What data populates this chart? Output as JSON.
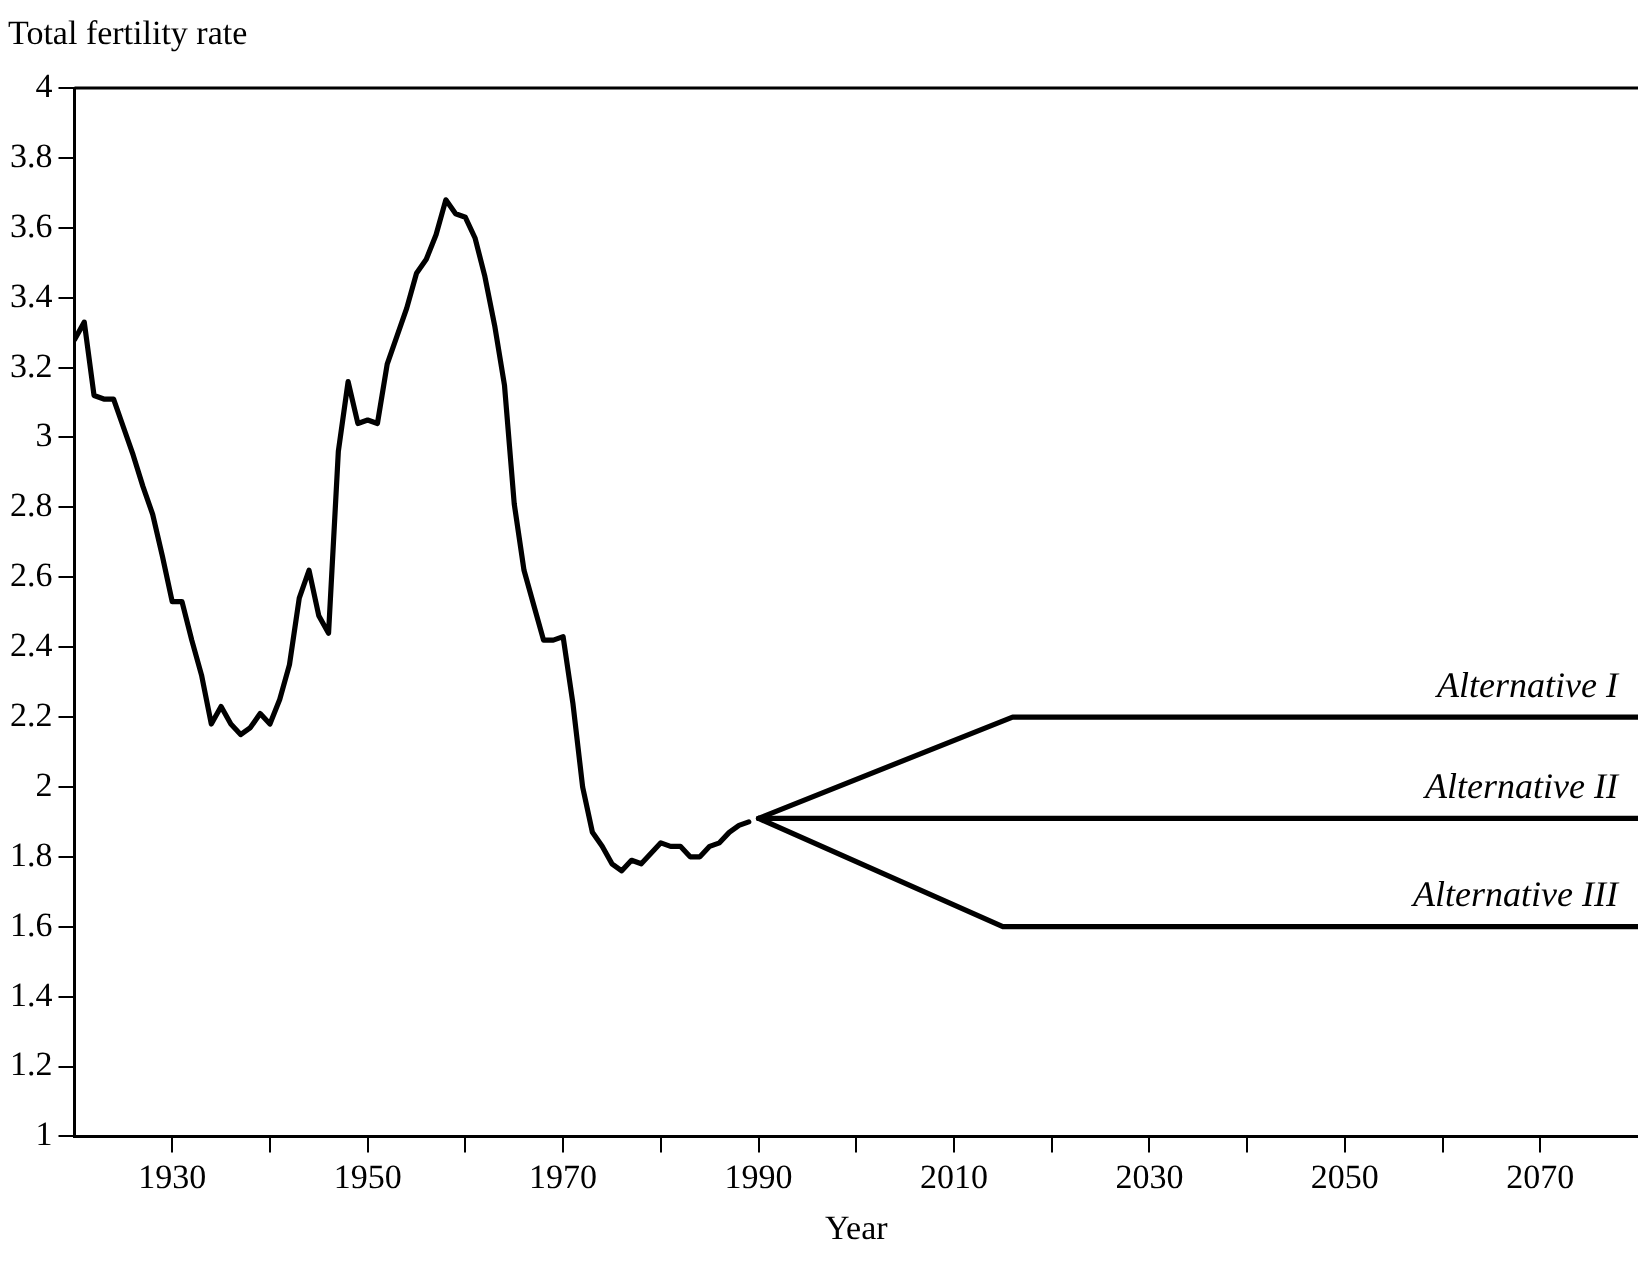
{
  "chart_data": {
    "type": "line",
    "ylabel": "Total fertility rate",
    "xlabel": "Year",
    "xlim": [
      1920,
      2080
    ],
    "xticks": [
      {
        "value": 1930,
        "label": "1930"
      },
      {
        "value": 1940,
        "label": null
      },
      {
        "value": 1950,
        "label": "1950"
      },
      {
        "value": 1960,
        "label": null
      },
      {
        "value": 1970,
        "label": "1970"
      },
      {
        "value": 1980,
        "label": null
      },
      {
        "value": 1990,
        "label": "1990"
      },
      {
        "value": 2000,
        "label": null
      },
      {
        "value": 2010,
        "label": "2010"
      },
      {
        "value": 2020,
        "label": null
      },
      {
        "value": 2030,
        "label": "2030"
      },
      {
        "value": 2040,
        "label": null
      },
      {
        "value": 2050,
        "label": "2050"
      },
      {
        "value": 2060,
        "label": null
      },
      {
        "value": 2070,
        "label": "2070"
      }
    ],
    "ylim": [
      1,
      4
    ],
    "yticks": [
      1,
      1.2,
      1.4,
      1.6,
      1.8,
      2,
      2.2,
      2.4,
      2.6,
      2.8,
      3,
      3.2,
      3.4,
      3.6,
      3.8,
      4
    ],
    "grid": false,
    "legend": false,
    "marker": "none",
    "line_style": "solid",
    "series": [
      {
        "color": "#000000",
        "x": [
          1920,
          1921,
          1922,
          1923,
          1924,
          1925,
          1926,
          1927,
          1928,
          1929,
          1930,
          1931,
          1932,
          1933,
          1934,
          1935,
          1936,
          1937,
          1938,
          1939,
          1940,
          1941,
          1942,
          1943,
          1944,
          1945,
          1946,
          1947,
          1948,
          1949,
          1950,
          1951,
          1952,
          1953,
          1954,
          1955,
          1956,
          1957,
          1958,
          1959,
          1960,
          1961,
          1962,
          1963,
          1964,
          1965,
          1966,
          1967,
          1968,
          1969,
          1970,
          1971,
          1972,
          1973,
          1974,
          1975,
          1976,
          1977,
          1978,
          1979,
          1980,
          1981,
          1982,
          1983,
          1984,
          1985,
          1986,
          1987,
          1988,
          1989
        ],
        "values": [
          3.28,
          3.33,
          3.12,
          3.11,
          3.11,
          3.03,
          2.95,
          2.86,
          2.78,
          2.66,
          2.53,
          2.53,
          2.42,
          2.32,
          2.18,
          2.23,
          2.18,
          2.15,
          2.17,
          2.21,
          2.18,
          2.25,
          2.35,
          2.54,
          2.62,
          2.49,
          2.44,
          2.96,
          3.16,
          3.04,
          3.05,
          3.04,
          3.21,
          3.29,
          3.37,
          3.47,
          3.51,
          3.58,
          3.68,
          3.64,
          3.63,
          3.57,
          3.46,
          3.32,
          3.15,
          2.81,
          2.62,
          2.52,
          2.42,
          2.42,
          2.43,
          2.24,
          2.0,
          1.87,
          1.83,
          1.78,
          1.76,
          1.79,
          1.78,
          1.81,
          1.84,
          1.83,
          1.83,
          1.8,
          1.8,
          1.83,
          1.84,
          1.87,
          1.89,
          1.9
        ]
      },
      {
        "name": "Alternative I",
        "color": "#000000",
        "x": [
          1990,
          2016,
          2080
        ],
        "values": [
          1.91,
          2.2,
          2.2
        ]
      },
      {
        "name": "Alternative II",
        "color": "#000000",
        "x": [
          1990,
          2080
        ],
        "values": [
          1.91,
          1.91
        ]
      },
      {
        "name": "Alternative III",
        "color": "#000000",
        "x": [
          1990,
          2015,
          2080
        ],
        "values": [
          1.91,
          1.6,
          1.6
        ]
      }
    ]
  }
}
